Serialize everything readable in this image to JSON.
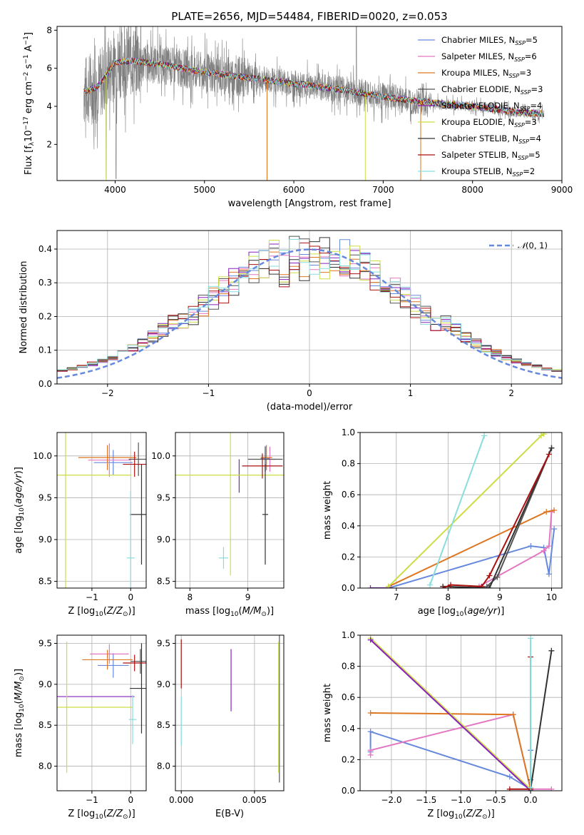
{
  "title": "PLATE=2656, MJD=54484, FIBERID=0020, z=0.053",
  "colors": {
    "Chabrier MILES": "#6688dd",
    "Salpeter MILES": "#e377c2",
    "Kroupa MILES": "#dd7722",
    "Chabrier ELODIE": "#555555",
    "Salpeter ELODIE": "#8822bb",
    "Kroupa ELODIE": "#ccdd44",
    "Chabrier STELIB": "#333333",
    "Salpeter STELIB": "#aa1111",
    "Kroupa STELIB": "#88dddd",
    "data": "#7f7f7f"
  },
  "chart_data": [
    {
      "id": "spectrum",
      "type": "line",
      "title": "PLATE=2656, MJD=54484, FIBERID=0020, z=0.053",
      "xlabel": "wavelength [Angstrom, rest frame]",
      "ylabel": "Flux [f_λ 10^-17 erg cm^-2 s^-1 A^-1]",
      "xlim": [
        3350,
        9000
      ],
      "ylim": [
        0.1,
        8.2
      ],
      "xticks": [
        4000,
        5000,
        6000,
        7000,
        8000,
        9000
      ],
      "yticks": [
        2,
        4,
        6,
        8
      ],
      "grid": false,
      "legend_position": "top-right",
      "legend": [
        "Chabrier MILES, N_SSP=5",
        "Salpeter MILES, N_SSP=6",
        "Kroupa MILES, N_SSP=3",
        "Chabrier ELODIE, N_SSP=3",
        "Salpeter ELODIE, N_SSP=4",
        "Kroupa ELODIE, N_SSP=3",
        "Chabrier STELIB, N_SSP=4",
        "Salpeter STELIB, N_SSP=5",
        "Kroupa STELIB, N_SSP=2"
      ],
      "model_continuum": {
        "x": [
          3650,
          3800,
          4000,
          4200,
          4500,
          5000,
          5500,
          6000,
          6500,
          7000,
          7500,
          8000,
          8500,
          8800
        ],
        "y": [
          4.8,
          5.0,
          6.3,
          6.4,
          6.2,
          5.8,
          5.5,
          5.2,
          4.9,
          4.5,
          4.2,
          4.0,
          3.7,
          3.6
        ]
      }
    },
    {
      "id": "residuals",
      "type": "line",
      "xlabel": "(data-model)/error",
      "ylabel": "Normed distribution",
      "xlim": [
        -2.5,
        2.5
      ],
      "ylim": [
        0,
        0.455
      ],
      "xticks": [
        -2,
        -1,
        0,
        1,
        2
      ],
      "yticks": [
        0.0,
        0.1,
        0.2,
        0.3,
        0.4
      ],
      "grid": true,
      "legend_position": "top-right",
      "legend": [
        "N(0,1)"
      ]
    },
    {
      "id": "age_vs_Z",
      "type": "scatter",
      "xlabel": "Z [log10(Z/Z_sun)]",
      "ylabel": "age [log10(age/yr)]",
      "xlim": [
        -1.9,
        0.4
      ],
      "ylim": [
        8.42,
        10.28
      ],
      "xticks": [
        -1,
        0
      ],
      "yticks": [
        8.5,
        9.0,
        9.5,
        10.0
      ],
      "grid": true,
      "points": [
        {
          "model": "Chabrier MILES",
          "x": -0.45,
          "y": 9.92,
          "xerr": 0.5,
          "yerr": 0.15
        },
        {
          "model": "Salpeter MILES",
          "x": -0.55,
          "y": 9.95,
          "xerr": 0.55,
          "yerr": 0.2
        },
        {
          "model": "Kroupa MILES",
          "x": -0.6,
          "y": 9.98,
          "xerr": 0.75,
          "yerr": 0.15
        },
        {
          "model": "Chabrier ELODIE",
          "x": 0.2,
          "y": 9.96,
          "xerr": 0.25,
          "yerr": 0.2
        },
        {
          "model": "Salpeter ELODIE",
          "x": -1.65,
          "y": 9.76,
          "xerr": 0.0,
          "yerr": 0.0
        },
        {
          "model": "Kroupa ELODIE",
          "x": -1.68,
          "y": 9.77,
          "xerr": 1.7,
          "yerr": 1.4
        },
        {
          "model": "Chabrier STELIB",
          "x": 0.28,
          "y": 9.3,
          "xerr": 0.3,
          "yerr": 0.6
        },
        {
          "model": "Salpeter STELIB",
          "x": 0.1,
          "y": 9.9,
          "xerr": 0.3,
          "yerr": 0.15
        },
        {
          "model": "Kroupa STELIB",
          "x": 0.0,
          "y": 8.78,
          "xerr": 0.1,
          "yerr": 0.8
        }
      ]
    },
    {
      "id": "age_vs_mass",
      "type": "scatter",
      "xlabel": "mass [log10(M/M_sun)]",
      "ylabel": "",
      "xlim": [
        7.75,
        9.62
      ],
      "ylim": [
        8.42,
        10.28
      ],
      "xticks": [
        8,
        9
      ],
      "yticks": [
        8.5,
        9.0,
        9.5,
        10.0
      ],
      "grid": true,
      "points": [
        {
          "model": "Chabrier MILES",
          "x": 9.3,
          "y": 9.97,
          "xerr": 0.08,
          "yerr": 0.15
        },
        {
          "model": "Salpeter MILES",
          "x": 9.38,
          "y": 9.96,
          "xerr": 0.1,
          "yerr": 0.15
        },
        {
          "model": "Kroupa MILES",
          "x": 9.32,
          "y": 9.98,
          "xerr": 0.1,
          "yerr": 0.15
        },
        {
          "model": "Chabrier ELODIE",
          "x": 9.3,
          "y": 9.96,
          "xerr": 0.3,
          "yerr": 0.15
        },
        {
          "model": "Salpeter ELODIE",
          "x": 8.85,
          "y": 9.76,
          "xerr": 0.0,
          "yerr": 0.2
        },
        {
          "model": "Kroupa ELODIE",
          "x": 8.7,
          "y": 9.77,
          "xerr": 0.95,
          "yerr": 1.2
        },
        {
          "model": "Chabrier STELIB",
          "x": 9.3,
          "y": 9.3,
          "xerr": 0.05,
          "yerr": 0.6
        },
        {
          "model": "Salpeter STELIB",
          "x": 9.25,
          "y": 9.88,
          "xerr": 0.35,
          "yerr": 0.15
        },
        {
          "model": "Kroupa STELIB",
          "x": 8.58,
          "y": 8.78,
          "xerr": 0.08,
          "yerr": 0.13
        }
      ]
    },
    {
      "id": "massweight_vs_age",
      "type": "line",
      "xlabel": "age [log10(age/yr)]",
      "ylabel": "mass weight",
      "xlim": [
        6.3,
        10.2
      ],
      "ylim": [
        0,
        1.0
      ],
      "xticks": [
        7,
        8,
        9,
        10
      ],
      "yticks": [
        0.0,
        0.2,
        0.4,
        0.6,
        0.8,
        1.0
      ],
      "grid": true,
      "series": [
        {
          "model": "Chabrier MILES",
          "x": [
            6.85,
            9.6,
            9.85,
            9.95,
            10.05
          ],
          "y": [
            0.0,
            0.27,
            0.26,
            0.09,
            0.38
          ]
        },
        {
          "model": "Salpeter MILES",
          "x": [
            8.6,
            9.85,
            9.95,
            10.0
          ],
          "y": [
            0.01,
            0.24,
            0.27,
            0.49
          ]
        },
        {
          "model": "Kroupa MILES",
          "x": [
            6.85,
            9.9,
            10.05
          ],
          "y": [
            0.01,
            0.49,
            0.5
          ]
        },
        {
          "model": "Chabrier ELODIE",
          "x": [
            8.75,
            8.95,
            10.0
          ],
          "y": [
            0.01,
            0.07,
            0.9
          ]
        },
        {
          "model": "Salpeter ELODIE",
          "x": [
            6.5,
            6.9
          ],
          "y": [
            0.0,
            0.0
          ]
        },
        {
          "model": "Kroupa ELODIE",
          "x": [
            6.85,
            9.8,
            9.85
          ],
          "y": [
            0.01,
            0.98,
            0.99
          ]
        },
        {
          "model": "Chabrier STELIB",
          "x": [
            7.9,
            8.8,
            10.0
          ],
          "y": [
            0.01,
            0.0,
            0.9
          ]
        },
        {
          "model": "Salpeter STELIB",
          "x": [
            7.9,
            8.05,
            8.65,
            8.8,
            9.95
          ],
          "y": [
            0.0,
            0.02,
            0.01,
            0.08,
            0.86
          ]
        },
        {
          "model": "Kroupa STELIB",
          "x": [
            7.65,
            8.7
          ],
          "y": [
            0.02,
            0.98
          ]
        }
      ]
    },
    {
      "id": "mass_vs_Z",
      "type": "scatter",
      "xlabel": "Z [log10(Z/Z_sun)]",
      "ylabel": "mass [log10(M/M_sun)]",
      "xlim": [
        -1.9,
        0.4
      ],
      "ylim": [
        7.7,
        9.6
      ],
      "xticks": [
        -1,
        0
      ],
      "yticks": [
        8.0,
        8.5,
        9.0,
        9.5
      ],
      "grid": true,
      "points": [
        {
          "model": "Chabrier MILES",
          "x": -0.45,
          "y": 9.23,
          "xerr": 0.4,
          "yerr": 0.15
        },
        {
          "model": "Salpeter MILES",
          "x": -0.55,
          "y": 9.37,
          "xerr": 0.5,
          "yerr": 0.12
        },
        {
          "model": "Kroupa MILES",
          "x": -0.6,
          "y": 9.3,
          "xerr": 0.65,
          "yerr": 0.12
        },
        {
          "model": "Chabrier ELODIE",
          "x": 0.25,
          "y": 9.28,
          "xerr": 0.25,
          "yerr": 0.15
        },
        {
          "model": "Salpeter ELODIE",
          "x": -1.6,
          "y": 8.85,
          "xerr": 1.7,
          "yerr": 0.0
        },
        {
          "model": "Kroupa ELODIE",
          "x": -1.65,
          "y": 8.72,
          "xerr": 1.7,
          "yerr": 0.8
        },
        {
          "model": "Chabrier STELIB",
          "x": 0.28,
          "y": 8.95,
          "xerr": 0.3,
          "yerr": 0.55
        },
        {
          "model": "Salpeter STELIB",
          "x": 0.1,
          "y": 9.26,
          "xerr": 0.3,
          "yerr": 0.1
        },
        {
          "model": "Kroupa STELIB",
          "x": 0.05,
          "y": 8.57,
          "xerr": 0.1,
          "yerr": 0.3
        }
      ]
    },
    {
      "id": "mass_vs_ebv",
      "type": "scatter",
      "xlabel": "E(B-V)",
      "ylabel": "",
      "xlim": [
        -0.0004,
        0.007
      ],
      "ylim": [
        7.7,
        9.6
      ],
      "xticks": [
        0.0,
        0.005
      ],
      "xticklabels": [
        "0.000",
        "0.005"
      ],
      "yticks": [
        8.0,
        8.5,
        9.0,
        9.5
      ],
      "grid": true,
      "points": [
        {
          "model": "Salpeter STELIB",
          "x": 0.0,
          "y": 9.25,
          "yerr": 0.3
        },
        {
          "model": "Kroupa STELIB",
          "x": 0.0,
          "y": 8.55,
          "yerr": 0.3
        },
        {
          "model": "Salpeter ELODIE",
          "x": 0.0034,
          "y": 9.05,
          "yerr": 0.38
        },
        {
          "model": "Chabrier ELODIE",
          "x": 0.0067,
          "y": 8.7,
          "yerr": 0.9
        },
        {
          "model": "Kroupa ELODIE",
          "x": 0.00665,
          "y": 8.72,
          "yerr": 0.8
        }
      ]
    },
    {
      "id": "massweight_vs_Z",
      "type": "line",
      "xlabel": "Z [log10(Z/Z_sun)]",
      "ylabel": "mass weight",
      "xlim": [
        -2.45,
        0.45
      ],
      "ylim": [
        0,
        1.0
      ],
      "xticks": [
        -2.0,
        -1.5,
        -1.0,
        -0.5,
        0.0
      ],
      "xticklabels": [
        "−2.0",
        "−1.5",
        "−1.0",
        "−0.5",
        "0.0"
      ],
      "yticks": [
        0.0,
        0.2,
        0.4,
        0.6,
        0.8,
        1.0
      ],
      "grid": true,
      "series": [
        {
          "model": "Chabrier MILES",
          "x": [
            -2.3,
            -2.3,
            -0.3,
            0.0,
            0.0
          ],
          "y": [
            0.25,
            0.38,
            0.09,
            0.01,
            0.26
          ]
        },
        {
          "model": "Salpeter MILES",
          "x": [
            -2.3,
            -2.3,
            -0.25,
            0.0,
            0.3
          ],
          "y": [
            0.23,
            0.26,
            0.49,
            0.01,
            0.01
          ]
        },
        {
          "model": "Kroupa MILES",
          "x": [
            -2.3,
            -0.25,
            0.0,
            0.0
          ],
          "y": [
            0.5,
            0.49,
            0.01,
            0.01
          ]
        },
        {
          "model": "Chabrier ELODIE",
          "x": [
            0.0,
            0.0
          ],
          "y": [
            0.0,
            0.07
          ]
        },
        {
          "model": "Kroupa ELODIE",
          "x": [
            -2.3,
            0.0
          ],
          "y": [
            0.98,
            0.01
          ]
        },
        {
          "model": "Salpeter ELODIE",
          "x": [
            -2.3,
            0.0
          ],
          "y": [
            0.97,
            0.0
          ]
        },
        {
          "model": "Chabrier STELIB",
          "x": [
            0.0,
            0.0,
            0.3
          ],
          "y": [
            0.0,
            0.01,
            0.9
          ]
        },
        {
          "model": "Salpeter STELIB",
          "x": [
            -0.3,
            0.0,
            0.0
          ],
          "y": [
            0.01,
            0.01,
            0.86
          ]
        },
        {
          "model": "Kroupa STELIB",
          "x": [
            0.0,
            0.0
          ],
          "y": [
            0.02,
            0.98
          ]
        }
      ]
    }
  ]
}
